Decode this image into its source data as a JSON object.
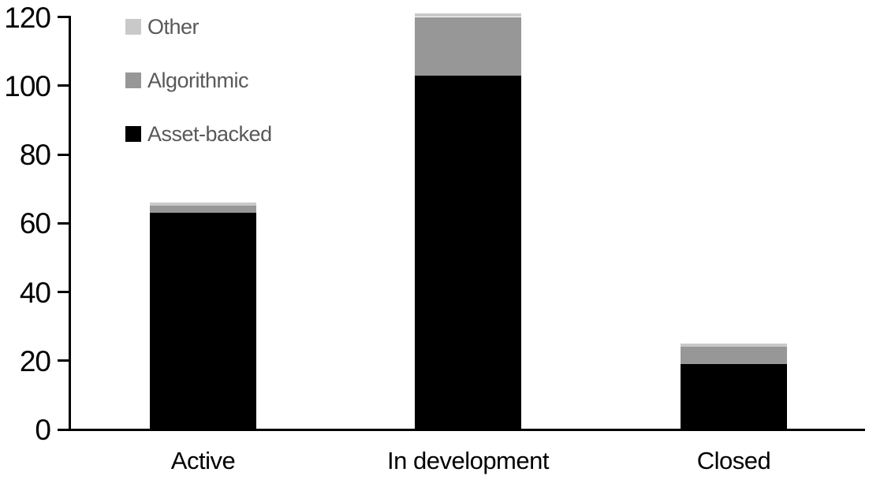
{
  "chart_data": {
    "type": "bar",
    "stacked": true,
    "title": "",
    "xlabel": "",
    "ylabel": "",
    "categories": [
      "Active",
      "In development",
      "Closed"
    ],
    "series": [
      {
        "name": "Asset-backed",
        "color": "#000000",
        "values": [
          63,
          103,
          19
        ]
      },
      {
        "name": "Algorithmic",
        "color": "#979797",
        "values": [
          2,
          17,
          5
        ]
      },
      {
        "name": "Other",
        "color": "#c9c9c9",
        "values": [
          1,
          1,
          1
        ]
      }
    ],
    "totals": [
      66,
      121,
      25
    ],
    "y_axis": {
      "min": 0,
      "max": 120,
      "tick_step": 20,
      "ticks": [
        0,
        20,
        40,
        60,
        80,
        100,
        120
      ]
    },
    "grid": false,
    "legend": {
      "position": "top-left",
      "items": [
        {
          "label": "Other",
          "color": "#c9c9c9"
        },
        {
          "label": "Algorithmic",
          "color": "#979797"
        },
        {
          "label": "Asset-backed",
          "color": "#000000"
        }
      ],
      "text_color": "#595959"
    },
    "axis_color": "#000000"
  }
}
